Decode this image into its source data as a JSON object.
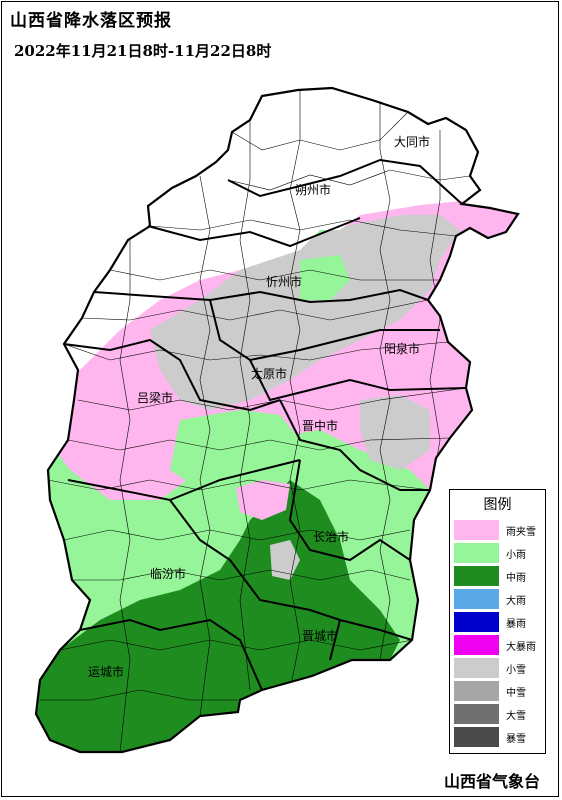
{
  "title": "山西省降水落区预报",
  "subtitle": "2022年11月21日8时-11月22日8时",
  "organization": "山西省气象台",
  "legend": {
    "title": "图例",
    "items": [
      {
        "label": "雨夹雪",
        "color": "#ffb6ee"
      },
      {
        "label": "小雨",
        "color": "#96f598"
      },
      {
        "label": "中雨",
        "color": "#1f8c1f"
      },
      {
        "label": "大雨",
        "color": "#5aa9e6"
      },
      {
        "label": "暴雨",
        "color": "#0000cd"
      },
      {
        "label": "大暴雨",
        "color": "#f000f0"
      },
      {
        "label": "小雪",
        "color": "#cccccc"
      },
      {
        "label": "中雪",
        "color": "#a6a6a6"
      },
      {
        "label": "大雪",
        "color": "#707070"
      },
      {
        "label": "暴雪",
        "color": "#4a4a4a"
      }
    ]
  },
  "cities": [
    "大同市",
    "朔州市",
    "忻州市",
    "阳泉市",
    "太原市",
    "吕梁市",
    "晋中市",
    "长治市",
    "临汾市",
    "晋城市",
    "运城市"
  ]
}
